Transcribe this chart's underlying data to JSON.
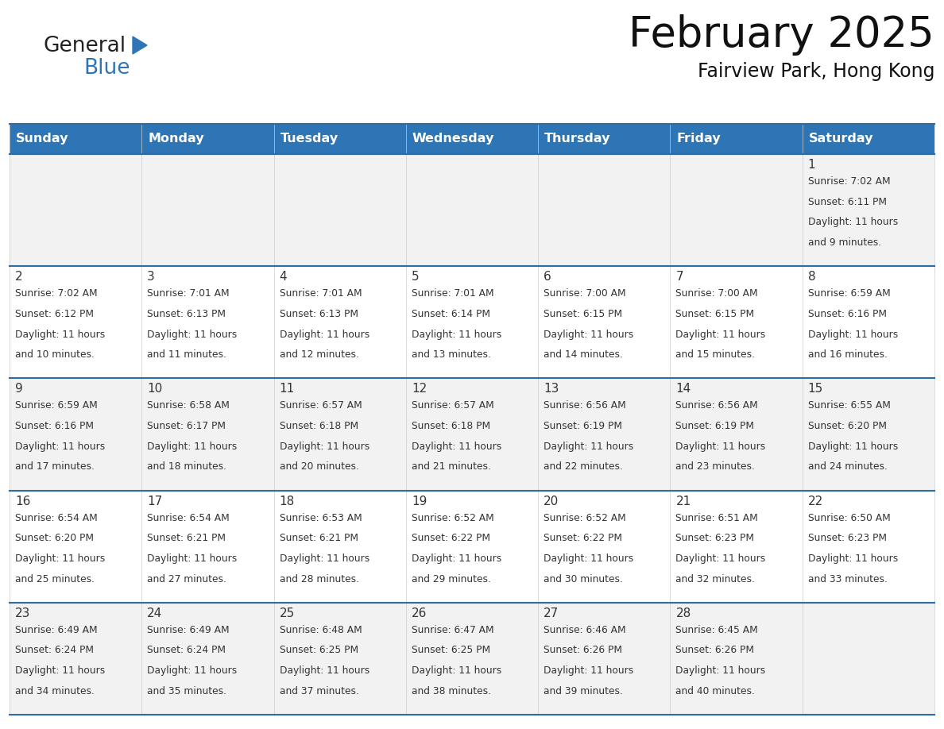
{
  "title": "February 2025",
  "subtitle": "Fairview Park, Hong Kong",
  "header_bg": "#2E75B6",
  "header_text_color": "#FFFFFF",
  "cell_bg_even": "#F2F2F2",
  "cell_bg_odd": "#FFFFFF",
  "border_color": "#2E6DA4",
  "day_headers": [
    "Sunday",
    "Monday",
    "Tuesday",
    "Wednesday",
    "Thursday",
    "Friday",
    "Saturday"
  ],
  "days": [
    {
      "day": 1,
      "col": 6,
      "row": 0,
      "sunrise": "7:02 AM",
      "sunset": "6:11 PM",
      "daylight": "11 hours and 9 minutes."
    },
    {
      "day": 2,
      "col": 0,
      "row": 1,
      "sunrise": "7:02 AM",
      "sunset": "6:12 PM",
      "daylight": "11 hours and 10 minutes."
    },
    {
      "day": 3,
      "col": 1,
      "row": 1,
      "sunrise": "7:01 AM",
      "sunset": "6:13 PM",
      "daylight": "11 hours and 11 minutes."
    },
    {
      "day": 4,
      "col": 2,
      "row": 1,
      "sunrise": "7:01 AM",
      "sunset": "6:13 PM",
      "daylight": "11 hours and 12 minutes."
    },
    {
      "day": 5,
      "col": 3,
      "row": 1,
      "sunrise": "7:01 AM",
      "sunset": "6:14 PM",
      "daylight": "11 hours and 13 minutes."
    },
    {
      "day": 6,
      "col": 4,
      "row": 1,
      "sunrise": "7:00 AM",
      "sunset": "6:15 PM",
      "daylight": "11 hours and 14 minutes."
    },
    {
      "day": 7,
      "col": 5,
      "row": 1,
      "sunrise": "7:00 AM",
      "sunset": "6:15 PM",
      "daylight": "11 hours and 15 minutes."
    },
    {
      "day": 8,
      "col": 6,
      "row": 1,
      "sunrise": "6:59 AM",
      "sunset": "6:16 PM",
      "daylight": "11 hours and 16 minutes."
    },
    {
      "day": 9,
      "col": 0,
      "row": 2,
      "sunrise": "6:59 AM",
      "sunset": "6:16 PM",
      "daylight": "11 hours and 17 minutes."
    },
    {
      "day": 10,
      "col": 1,
      "row": 2,
      "sunrise": "6:58 AM",
      "sunset": "6:17 PM",
      "daylight": "11 hours and 18 minutes."
    },
    {
      "day": 11,
      "col": 2,
      "row": 2,
      "sunrise": "6:57 AM",
      "sunset": "6:18 PM",
      "daylight": "11 hours and 20 minutes."
    },
    {
      "day": 12,
      "col": 3,
      "row": 2,
      "sunrise": "6:57 AM",
      "sunset": "6:18 PM",
      "daylight": "11 hours and 21 minutes."
    },
    {
      "day": 13,
      "col": 4,
      "row": 2,
      "sunrise": "6:56 AM",
      "sunset": "6:19 PM",
      "daylight": "11 hours and 22 minutes."
    },
    {
      "day": 14,
      "col": 5,
      "row": 2,
      "sunrise": "6:56 AM",
      "sunset": "6:19 PM",
      "daylight": "11 hours and 23 minutes."
    },
    {
      "day": 15,
      "col": 6,
      "row": 2,
      "sunrise": "6:55 AM",
      "sunset": "6:20 PM",
      "daylight": "11 hours and 24 minutes."
    },
    {
      "day": 16,
      "col": 0,
      "row": 3,
      "sunrise": "6:54 AM",
      "sunset": "6:20 PM",
      "daylight": "11 hours and 25 minutes."
    },
    {
      "day": 17,
      "col": 1,
      "row": 3,
      "sunrise": "6:54 AM",
      "sunset": "6:21 PM",
      "daylight": "11 hours and 27 minutes."
    },
    {
      "day": 18,
      "col": 2,
      "row": 3,
      "sunrise": "6:53 AM",
      "sunset": "6:21 PM",
      "daylight": "11 hours and 28 minutes."
    },
    {
      "day": 19,
      "col": 3,
      "row": 3,
      "sunrise": "6:52 AM",
      "sunset": "6:22 PM",
      "daylight": "11 hours and 29 minutes."
    },
    {
      "day": 20,
      "col": 4,
      "row": 3,
      "sunrise": "6:52 AM",
      "sunset": "6:22 PM",
      "daylight": "11 hours and 30 minutes."
    },
    {
      "day": 21,
      "col": 5,
      "row": 3,
      "sunrise": "6:51 AM",
      "sunset": "6:23 PM",
      "daylight": "11 hours and 32 minutes."
    },
    {
      "day": 22,
      "col": 6,
      "row": 3,
      "sunrise": "6:50 AM",
      "sunset": "6:23 PM",
      "daylight": "11 hours and 33 minutes."
    },
    {
      "day": 23,
      "col": 0,
      "row": 4,
      "sunrise": "6:49 AM",
      "sunset": "6:24 PM",
      "daylight": "11 hours and 34 minutes."
    },
    {
      "day": 24,
      "col": 1,
      "row": 4,
      "sunrise": "6:49 AM",
      "sunset": "6:24 PM",
      "daylight": "11 hours and 35 minutes."
    },
    {
      "day": 25,
      "col": 2,
      "row": 4,
      "sunrise": "6:48 AM",
      "sunset": "6:25 PM",
      "daylight": "11 hours and 37 minutes."
    },
    {
      "day": 26,
      "col": 3,
      "row": 4,
      "sunrise": "6:47 AM",
      "sunset": "6:25 PM",
      "daylight": "11 hours and 38 minutes."
    },
    {
      "day": 27,
      "col": 4,
      "row": 4,
      "sunrise": "6:46 AM",
      "sunset": "6:26 PM",
      "daylight": "11 hours and 39 minutes."
    },
    {
      "day": 28,
      "col": 5,
      "row": 4,
      "sunrise": "6:45 AM",
      "sunset": "6:26 PM",
      "daylight": "11 hours and 40 minutes."
    }
  ],
  "num_rows": 5,
  "num_cols": 7,
  "logo_text1": "General",
  "logo_text2": "Blue",
  "logo_color1": "#222222",
  "logo_color2": "#2E75B6",
  "logo_triangle_color": "#2E75B6"
}
